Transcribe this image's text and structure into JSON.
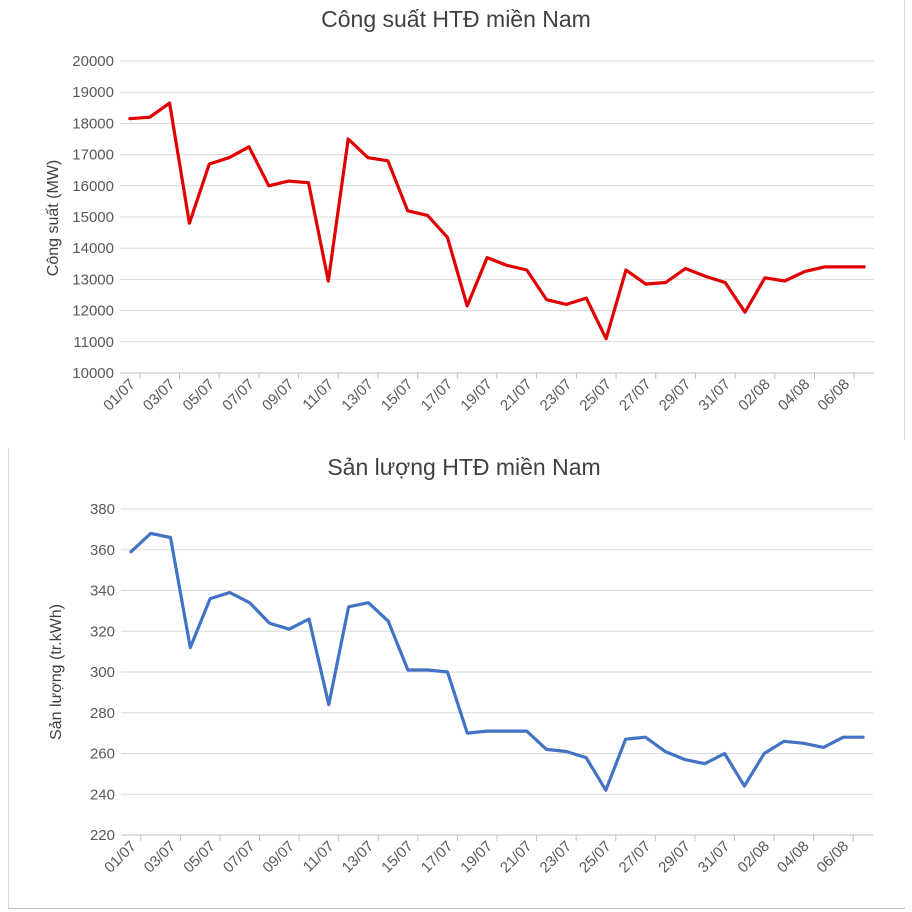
{
  "chart_data": [
    {
      "type": "line",
      "title": "Công suất HTĐ miền Nam",
      "xlabel": "",
      "ylabel": "Công suất (MW)",
      "ylim": [
        10000,
        20000
      ],
      "y_ticks": [
        10000,
        11000,
        12000,
        13000,
        14000,
        15000,
        16000,
        17000,
        18000,
        19000,
        20000
      ],
      "grid": true,
      "color": "#e00000",
      "x": [
        "01/07",
        "02/07",
        "03/07",
        "04/07",
        "05/07",
        "06/07",
        "07/07",
        "08/07",
        "09/07",
        "10/07",
        "11/07",
        "12/07",
        "13/07",
        "14/07",
        "15/07",
        "16/07",
        "17/07",
        "18/07",
        "19/07",
        "20/07",
        "21/07",
        "22/07",
        "23/07",
        "24/07",
        "25/07",
        "26/07",
        "27/07",
        "28/07",
        "29/07",
        "30/07",
        "31/07",
        "01/08",
        "02/08",
        "03/08",
        "04/08",
        "05/08",
        "06/08",
        "07/08"
      ],
      "x_tick_labels": [
        "01/07",
        "03/07",
        "05/07",
        "07/07",
        "09/07",
        "11/07",
        "13/07",
        "15/07",
        "17/07",
        "19/07",
        "21/07",
        "23/07",
        "25/07",
        "27/07",
        "29/07",
        "31/07",
        "02/08",
        "04/08",
        "06/08"
      ],
      "values": [
        18150,
        18200,
        18650,
        14800,
        16700,
        16900,
        17250,
        16000,
        16150,
        16100,
        12950,
        17500,
        16900,
        16800,
        15200,
        15050,
        14350,
        12150,
        13700,
        13450,
        13300,
        12350,
        12200,
        12400,
        11100,
        13300,
        12850,
        12900,
        13350,
        13100,
        12900,
        11950,
        13050,
        12950,
        13250,
        13400,
        13400,
        13400
      ]
    },
    {
      "type": "line",
      "title": "Sản lượng HTĐ miền Nam",
      "xlabel": "",
      "ylabel": "Sản lượng (tr.kWh)",
      "ylim": [
        220,
        380
      ],
      "y_ticks": [
        220,
        240,
        260,
        280,
        300,
        320,
        340,
        360,
        380
      ],
      "grid": true,
      "color": "#4472c4",
      "x": [
        "01/07",
        "02/07",
        "03/07",
        "04/07",
        "05/07",
        "06/07",
        "07/07",
        "08/07",
        "09/07",
        "10/07",
        "11/07",
        "12/07",
        "13/07",
        "14/07",
        "15/07",
        "16/07",
        "17/07",
        "18/07",
        "19/07",
        "20/07",
        "21/07",
        "22/07",
        "23/07",
        "24/07",
        "25/07",
        "26/07",
        "27/07",
        "28/07",
        "29/07",
        "30/07",
        "31/07",
        "01/08",
        "02/08",
        "03/08",
        "04/08",
        "05/08",
        "06/08",
        "07/08"
      ],
      "x_tick_labels": [
        "01/07",
        "03/07",
        "05/07",
        "07/07",
        "09/07",
        "11/07",
        "13/07",
        "15/07",
        "17/07",
        "19/07",
        "21/07",
        "23/07",
        "25/07",
        "27/07",
        "29/07",
        "31/07",
        "02/08",
        "04/08",
        "06/08"
      ],
      "values": [
        359,
        368,
        366,
        312,
        336,
        339,
        334,
        324,
        321,
        326,
        284,
        332,
        334,
        325,
        301,
        301,
        300,
        270,
        271,
        271,
        271,
        262,
        261,
        258,
        242,
        267,
        268,
        261,
        257,
        255,
        260,
        244,
        260,
        266,
        265,
        263,
        268,
        268
      ]
    }
  ]
}
